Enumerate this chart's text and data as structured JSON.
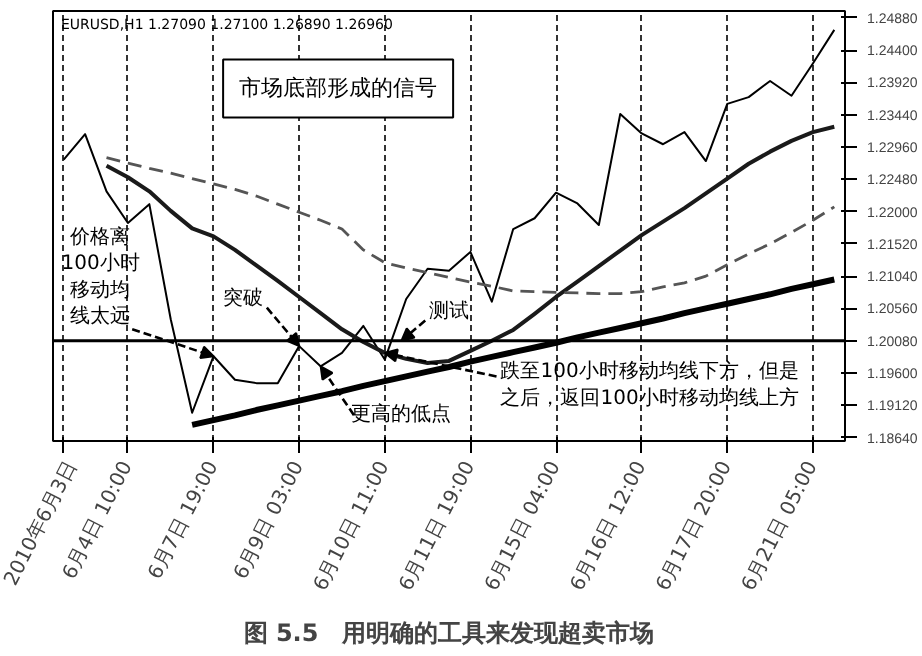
{
  "chart_data": {
    "type": "line",
    "title": "图 5.5　用明确的工具来发现超卖市场",
    "annotations": [
      "EURUSD,H1 1.27090 1.27100 1.26890 1.26960",
      "市场底部形成的信号",
      {
        "text": "价格离100小时移动均线太远",
        "x": "6月7日 19:00",
        "y": 1.1985
      },
      {
        "text": "突破",
        "y": 1.2
      },
      {
        "text": "更高的低点",
        "y": 1.197
      },
      {
        "text": "测试",
        "y": 1.2008
      },
      {
        "text": "跌至100小时移动均线下方，但是之后，返回100小时移动均线上方",
        "x": "6月10日 11:00",
        "y": 1.199
      }
    ],
    "categories": [
      "2010年6月3日",
      null,
      null,
      "6月4日 10:00",
      null,
      null,
      null,
      "6月7日 19:00",
      null,
      null,
      null,
      "6月9日 03:00",
      null,
      null,
      null,
      "6月10日 11:00",
      null,
      null,
      null,
      "6月11日 19:00",
      null,
      null,
      null,
      "6月15日 04:00",
      null,
      null,
      null,
      "6月16日 12:00",
      null,
      null,
      null,
      "6月17日 20:00",
      null,
      null,
      null,
      "6月21日 05:00",
      null
    ],
    "ylim": [
      1.1859,
      1.2498
    ],
    "yticks": [
      {
        "value": 1.2488,
        "label": "1.24880"
      },
      {
        "value": 1.244,
        "label": "1.24400"
      },
      {
        "value": 1.2392,
        "label": "1.23920"
      },
      {
        "value": 1.2344,
        "label": "1.23440"
      },
      {
        "value": 1.2296,
        "label": "1.22960"
      },
      {
        "value": 1.2248,
        "label": "1.22480"
      },
      {
        "value": 1.22,
        "label": "1.22000"
      },
      {
        "value": 1.2152,
        "label": "1.21520"
      },
      {
        "value": 1.2104,
        "label": "1.21040"
      },
      {
        "value": 1.2056,
        "label": "1.20560"
      },
      {
        "value": 1.2008,
        "label": "1.20080"
      },
      {
        "value": 1.196,
        "label": "1.19600"
      },
      {
        "value": 1.1912,
        "label": "1.19120"
      },
      {
        "value": 1.1864,
        "label": "1.18640"
      }
    ],
    "grid": "x",
    "ref_lines": [
      {
        "axis": "y",
        "value": 1.2008,
        "color": "#000000"
      }
    ],
    "series": [
      {
        "color": "#000000",
        "line_style": "solid",
        "values": [
          1.2277,
          1.2315,
          1.223,
          1.2183,
          1.2211,
          1.204,
          1.1901,
          1.1985,
          1.195,
          1.1945,
          1.1945,
          1.2,
          1.197,
          1.199,
          1.203,
          1.198,
          1.207,
          1.2115,
          1.2112,
          1.214,
          1.2066,
          1.2174,
          1.219,
          1.2228,
          1.2212,
          1.218,
          1.2345,
          1.2316,
          1.23,
          1.2318,
          1.2275,
          1.236,
          1.237,
          1.2394,
          1.2372,
          1.242,
          1.247
        ]
      },
      {
        "color": "#1a1a1a",
        "line_style": "solid",
        "values": [
          null,
          null,
          1.2268,
          1.2251,
          1.223,
          1.2201,
          1.2175,
          1.2163,
          1.2143,
          1.212,
          1.2097,
          1.2073,
          1.2049,
          1.2025,
          1.2006,
          1.199,
          1.1981,
          1.1975,
          1.1978,
          1.1993,
          1.2008,
          1.2024,
          1.2048,
          1.2073,
          1.2096,
          1.2119,
          1.2142,
          1.2165,
          1.2185,
          1.2205,
          1.2227,
          1.2249,
          1.2271,
          1.2289,
          1.2305,
          1.2318,
          1.2326
        ]
      },
      {
        "color": "#555555",
        "line_style": "dashed",
        "values": [
          null,
          null,
          1.228,
          1.2272,
          1.2264,
          1.2257,
          1.2249,
          1.2241,
          1.2233,
          1.2223,
          1.2211,
          1.2199,
          1.2187,
          1.2174,
          1.2143,
          1.2124,
          1.2116,
          1.2109,
          1.2102,
          1.2095,
          1.2089,
          1.2082,
          1.2081,
          1.208,
          1.2079,
          1.2078,
          1.2078,
          1.2081,
          1.2088,
          1.2094,
          1.2104,
          1.2121,
          1.2137,
          1.2152,
          1.2169,
          1.2187,
          1.2207
        ]
      },
      {
        "color": "#000000",
        "line_style": "solid",
        "values": [
          null,
          null,
          null,
          null,
          null,
          null,
          1.1883,
          1.189,
          1.1897,
          1.1905,
          1.1912,
          1.1919,
          1.1926,
          1.1933,
          1.1941,
          1.1948,
          1.1955,
          1.1962,
          1.1969,
          1.1977,
          1.1984,
          1.1991,
          1.1998,
          1.2005,
          1.2013,
          1.202,
          1.2027,
          1.2034,
          1.2041,
          1.2049,
          1.2056,
          1.2063,
          1.207,
          1.2077,
          1.2085,
          1.2092,
          1.2099
        ]
      }
    ]
  }
}
